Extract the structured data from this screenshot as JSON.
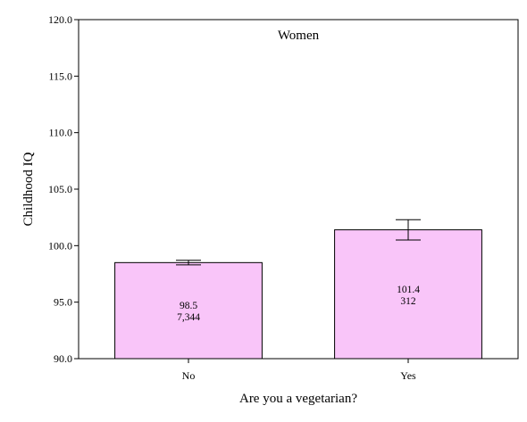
{
  "chart_data": {
    "type": "bar",
    "title": "Women",
    "xlabel": "Are you a vegetarian?",
    "ylabel": "Childhood IQ",
    "categories": [
      "No",
      "Yes"
    ],
    "values": [
      98.5,
      101.4
    ],
    "counts": [
      "7,344",
      "312"
    ],
    "value_labels": [
      "98.5",
      "101.4"
    ],
    "error_low": [
      98.3,
      100.5
    ],
    "error_high": [
      98.7,
      102.3
    ],
    "ylim": [
      90.0,
      120.0
    ],
    "yticks": [
      90.0,
      95.0,
      100.0,
      105.0,
      110.0,
      115.0,
      120.0
    ],
    "ytick_labels": [
      "90.0",
      "95.0",
      "100.0",
      "105.0",
      "110.0",
      "115.0",
      "120.0"
    ],
    "grid": false,
    "legend": "none",
    "bar_color": "#f9c5f9",
    "bar_edge_color": "#000000"
  }
}
